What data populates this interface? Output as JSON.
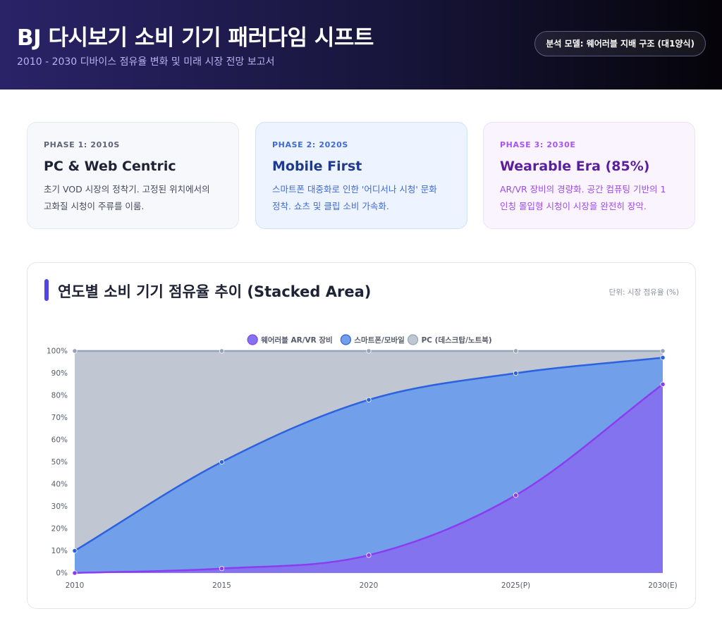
{
  "header": {
    "title": "BJ 다시보기 소비 기기 패러다임 시프트",
    "subtitle": "2010 - 2030 디바이스 점유율 변화 및 미래 시장 전망 보고서",
    "badge": "분석 모델: 웨어러블 지배 구조 (대1양식)"
  },
  "phases": [
    {
      "tag": "PHASE 1: 2010S",
      "title": "PC & Web Centric",
      "desc_lines": [
        "초기 VOD 시장의 정착기. 고정된 위치에서의",
        "고화질 시청이 주류를 이룸."
      ]
    },
    {
      "tag": "PHASE 2: 2020S",
      "title": "Mobile First",
      "desc_lines": [
        "스마트폰 대중화로 인한 '어디서나 시청' 문화",
        "정착. 쇼츠 및 클립 소비 가속화."
      ]
    },
    {
      "tag": "PHASE 3: 2030E",
      "title": "Wearable Era (85%)",
      "desc_lines": [
        "AR/VR 장비의 경량화. 공간 컴퓨팅 기반의 1",
        "인칭 몰입형 시청이 시장을 완전히 장악."
      ]
    }
  ],
  "chart_card": {
    "title": "연도별 소비 기기 점유율 추이 (Stacked Area)",
    "unit_note": "단위: 시장 점유율 (%)"
  },
  "chart_data": {
    "type": "area",
    "stacked": true,
    "categories": [
      "2010",
      "2015",
      "2020",
      "2025(P)",
      "2030(E)"
    ],
    "series": [
      {
        "name": "웨어러블 AR/VR 장비",
        "values": [
          0,
          2,
          8,
          35,
          85
        ],
        "stroke": "#8b3cf0",
        "fill": "#8473ef"
      },
      {
        "name": "스마트폰/모바일",
        "values": [
          10,
          48,
          70,
          55,
          12
        ],
        "stroke": "#2b62e0",
        "fill": "#729fe9"
      },
      {
        "name": "PC (데스크탑/노트북)",
        "values": [
          90,
          50,
          22,
          10,
          3
        ],
        "stroke": "#94a3b8",
        "fill": "#c0c6d2"
      }
    ],
    "ylim": [
      0,
      100
    ],
    "y_ticks": [
      "0%",
      "10%",
      "20%",
      "30%",
      "40%",
      "50%",
      "60%",
      "70%",
      "80%",
      "90%",
      "100%"
    ],
    "legend_position": "top-center",
    "grid": true
  }
}
